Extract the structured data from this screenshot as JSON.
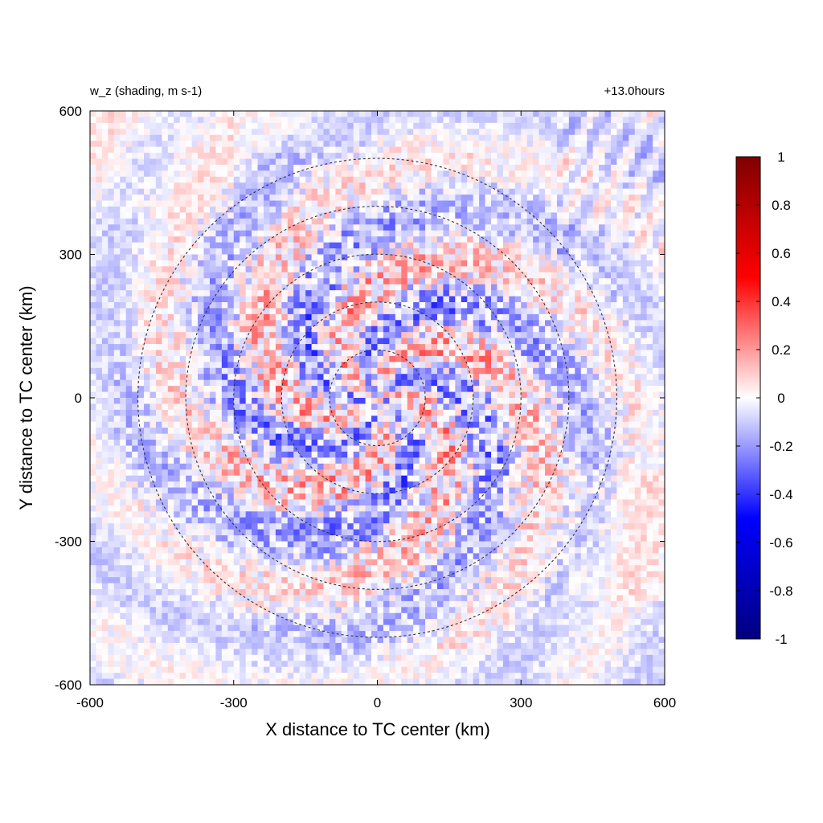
{
  "chart_data": {
    "type": "heatmap",
    "title_left": "w_z (shading, m s-1)",
    "title_right": "+13.0hours",
    "xlabel": "X distance to TC center (km)",
    "ylabel": "Y distance to TC center (km)",
    "xlim": [
      -600,
      600
    ],
    "ylim": [
      -600,
      600
    ],
    "xticks": [
      "-600",
      "-300",
      "0",
      "300",
      "600"
    ],
    "yticks": [
      "-600",
      "-300",
      "0",
      "300",
      "600"
    ],
    "range_circles_km": [
      100,
      200,
      300,
      400,
      500
    ],
    "colorbar": {
      "min": -1,
      "max": 1,
      "ticks": [
        "1",
        "0.8",
        "0.6",
        "0.4",
        "0.2",
        "0",
        "-0.2",
        "-0.4",
        "-0.6",
        "-0.8",
        "-1"
      ],
      "colors": [
        "#000080",
        "#0000ff",
        "#ffffff",
        "#ff0000",
        "#800000"
      ]
    },
    "grid": false,
    "legend": "colorbar-right"
  }
}
